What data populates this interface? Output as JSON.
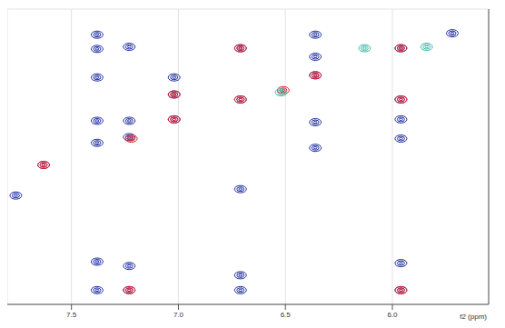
{
  "chart_data": {
    "type": "scatter",
    "x_label": "f2 (ppm)",
    "xlim": [
      7.8,
      5.55
    ],
    "xticks": [
      7.5,
      {
        "value": 7,
        "label": "7.0"
      },
      6.5,
      {
        "value": 6,
        "label": "6.0"
      }
    ],
    "ylim": [
      9.6,
      5.45
    ],
    "yticks": [
      6,
      7,
      8,
      9
    ],
    "tick_labels": "x",
    "grid": true,
    "series": [
      {
        "color": "#1f2f9e",
        "x": [
          7.38,
          7.38,
          7.23,
          6.71,
          6.36,
          6.36,
          5.72,
          7.38,
          7.02,
          7.02,
          6.71,
          6.36,
          5.96,
          5.96,
          7.38,
          7.23,
          7.02,
          6.36,
          5.96,
          5.96,
          7.38,
          7.23,
          6.36,
          7.63,
          7.76,
          6.71,
          7.38,
          7.23,
          6.71,
          5.96,
          7.38,
          7.23,
          6.71,
          5.96
        ],
        "y": [
          5.81,
          6.01,
          5.98,
          6.0,
          5.81,
          6.12,
          5.79,
          6.41,
          6.41,
          6.65,
          6.72,
          6.38,
          6.0,
          6.72,
          7.02,
          7.02,
          7.0,
          7.04,
          7.0,
          7.27,
          7.33,
          7.25,
          7.4,
          7.64,
          8.07,
          7.98,
          9.0,
          9.06,
          9.19,
          9.02,
          9.4,
          9.4,
          9.4,
          9.4
        ]
      },
      {
        "color": "#e0202a",
        "x": [
          5.96,
          5.96,
          5.96,
          6.36,
          6.71,
          6.71,
          7.02,
          7.02,
          7.22,
          7.23,
          7.63,
          6.51
        ],
        "y": [
          6.0,
          6.72,
          9.4,
          6.38,
          6.72,
          6.0,
          7.0,
          6.65,
          7.27,
          9.4,
          7.64,
          6.59
        ]
      },
      {
        "color": "#3fb8a8",
        "x": [
          6.13,
          5.84,
          6.52
        ],
        "y": [
          6.0,
          5.98,
          6.62
        ]
      }
    ]
  }
}
